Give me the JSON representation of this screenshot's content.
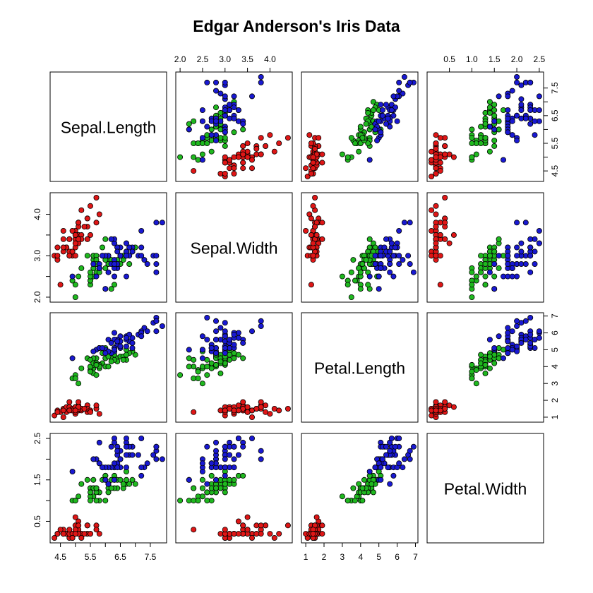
{
  "chart_data": {
    "type": "scatter",
    "title": "Edgar Anderson's Iris Data",
    "variables": [
      "Sepal.Length",
      "Sepal.Width",
      "Petal.Length",
      "Petal.Width"
    ],
    "ranges": {
      "Sepal.Length": [
        4.3,
        7.9
      ],
      "Sepal.Width": [
        2.0,
        4.4
      ],
      "Petal.Length": [
        1.0,
        6.9
      ],
      "Petal.Width": [
        0.1,
        2.5
      ]
    },
    "ticks": {
      "Sepal.Length": {
        "major": [
          4.5,
          5.5,
          6.5,
          7.5
        ],
        "minor": [
          5.0,
          6.0,
          7.0
        ],
        "major_labels": [
          "4.5",
          "5.5",
          "6.5",
          "7.5"
        ]
      },
      "Sepal.Width": {
        "major": [
          2.0,
          3.0,
          4.0
        ],
        "minor": [
          2.5,
          3.5
        ],
        "major_labels": [
          "2.0",
          "3.0",
          "4.0"
        ],
        "top_labels": [
          "2.0",
          "2.5",
          "3.0",
          "3.5",
          "4.0"
        ]
      },
      "Petal.Length": {
        "major": [
          1,
          2,
          3,
          4,
          5,
          6,
          7
        ],
        "minor": [],
        "major_labels": [
          "1",
          "2",
          "3",
          "4",
          "5",
          "6",
          "7"
        ]
      },
      "Petal.Width": {
        "major": [
          0.5,
          1.5,
          2.5
        ],
        "minor": [
          1.0,
          2.0
        ],
        "major_labels": [
          "0.5",
          "1.5",
          "2.5"
        ],
        "top_labels": [
          "0.5",
          "1.0",
          "1.5",
          "2.0",
          "2.5"
        ]
      }
    },
    "colors": {
      "setosa": "#df1616",
      "versicolor": "#1fb81f",
      "virginica": "#1919d2"
    },
    "point_stroke": "#000000",
    "data": {
      "setosa": [
        [
          5.1,
          3.5,
          1.4,
          0.2
        ],
        [
          4.9,
          3.0,
          1.4,
          0.2
        ],
        [
          4.7,
          3.2,
          1.3,
          0.2
        ],
        [
          4.6,
          3.1,
          1.5,
          0.2
        ],
        [
          5.0,
          3.6,
          1.4,
          0.2
        ],
        [
          5.4,
          3.9,
          1.7,
          0.4
        ],
        [
          4.6,
          3.4,
          1.4,
          0.3
        ],
        [
          5.0,
          3.4,
          1.5,
          0.2
        ],
        [
          4.4,
          2.9,
          1.4,
          0.2
        ],
        [
          4.9,
          3.1,
          1.5,
          0.1
        ],
        [
          5.4,
          3.7,
          1.5,
          0.2
        ],
        [
          4.8,
          3.4,
          1.6,
          0.2
        ],
        [
          4.8,
          3.0,
          1.4,
          0.1
        ],
        [
          4.3,
          3.0,
          1.1,
          0.1
        ],
        [
          5.8,
          4.0,
          1.2,
          0.2
        ],
        [
          5.7,
          4.4,
          1.5,
          0.4
        ],
        [
          5.4,
          3.9,
          1.3,
          0.4
        ],
        [
          5.1,
          3.5,
          1.4,
          0.3
        ],
        [
          5.7,
          3.8,
          1.7,
          0.3
        ],
        [
          5.1,
          3.8,
          1.5,
          0.3
        ],
        [
          5.4,
          3.4,
          1.7,
          0.2
        ],
        [
          5.1,
          3.7,
          1.5,
          0.4
        ],
        [
          4.6,
          3.6,
          1.0,
          0.2
        ],
        [
          5.1,
          3.3,
          1.7,
          0.5
        ],
        [
          4.8,
          3.4,
          1.9,
          0.2
        ],
        [
          5.0,
          3.0,
          1.6,
          0.2
        ],
        [
          5.0,
          3.4,
          1.6,
          0.4
        ],
        [
          5.2,
          3.5,
          1.5,
          0.2
        ],
        [
          5.2,
          3.4,
          1.4,
          0.2
        ],
        [
          4.7,
          3.2,
          1.6,
          0.2
        ],
        [
          4.8,
          3.1,
          1.6,
          0.2
        ],
        [
          5.4,
          3.4,
          1.5,
          0.4
        ],
        [
          5.2,
          4.1,
          1.5,
          0.1
        ],
        [
          5.5,
          4.2,
          1.4,
          0.2
        ],
        [
          4.9,
          3.1,
          1.5,
          0.2
        ],
        [
          5.0,
          3.2,
          1.2,
          0.2
        ],
        [
          5.5,
          3.5,
          1.3,
          0.2
        ],
        [
          4.9,
          3.6,
          1.4,
          0.1
        ],
        [
          4.4,
          3.0,
          1.3,
          0.2
        ],
        [
          5.1,
          3.4,
          1.5,
          0.2
        ],
        [
          5.0,
          3.5,
          1.3,
          0.3
        ],
        [
          4.5,
          2.3,
          1.3,
          0.3
        ],
        [
          4.4,
          3.2,
          1.3,
          0.2
        ],
        [
          5.0,
          3.5,
          1.6,
          0.6
        ],
        [
          5.1,
          3.8,
          1.9,
          0.4
        ],
        [
          4.8,
          3.0,
          1.4,
          0.3
        ],
        [
          5.1,
          3.8,
          1.6,
          0.2
        ],
        [
          4.6,
          3.2,
          1.4,
          0.2
        ],
        [
          5.3,
          3.7,
          1.5,
          0.2
        ],
        [
          5.0,
          3.3,
          1.4,
          0.2
        ]
      ],
      "versicolor": [
        [
          7.0,
          3.2,
          4.7,
          1.4
        ],
        [
          6.4,
          3.2,
          4.5,
          1.5
        ],
        [
          6.9,
          3.1,
          4.9,
          1.5
        ],
        [
          5.5,
          2.3,
          4.0,
          1.3
        ],
        [
          6.5,
          2.8,
          4.6,
          1.5
        ],
        [
          5.7,
          2.8,
          4.5,
          1.3
        ],
        [
          6.3,
          3.3,
          4.7,
          1.6
        ],
        [
          4.9,
          2.4,
          3.3,
          1.0
        ],
        [
          6.6,
          2.9,
          4.6,
          1.3
        ],
        [
          5.2,
          2.7,
          3.9,
          1.4
        ],
        [
          5.0,
          2.0,
          3.5,
          1.0
        ],
        [
          5.9,
          3.0,
          4.2,
          1.5
        ],
        [
          6.0,
          2.2,
          4.0,
          1.0
        ],
        [
          6.1,
          2.9,
          4.7,
          1.4
        ],
        [
          5.6,
          2.9,
          3.6,
          1.3
        ],
        [
          6.7,
          3.1,
          4.4,
          1.4
        ],
        [
          5.6,
          3.0,
          4.5,
          1.5
        ],
        [
          5.8,
          2.7,
          4.1,
          1.0
        ],
        [
          6.2,
          2.2,
          4.5,
          1.5
        ],
        [
          5.6,
          2.5,
          3.9,
          1.1
        ],
        [
          5.9,
          3.2,
          4.8,
          1.8
        ],
        [
          6.1,
          2.8,
          4.0,
          1.3
        ],
        [
          6.3,
          2.5,
          4.9,
          1.5
        ],
        [
          6.1,
          2.8,
          4.7,
          1.2
        ],
        [
          6.4,
          2.9,
          4.3,
          1.3
        ],
        [
          6.6,
          3.0,
          4.4,
          1.4
        ],
        [
          6.8,
          2.8,
          4.8,
          1.4
        ],
        [
          6.7,
          3.0,
          5.0,
          1.7
        ],
        [
          6.0,
          2.9,
          4.5,
          1.5
        ],
        [
          5.7,
          2.6,
          3.5,
          1.0
        ],
        [
          5.5,
          2.4,
          3.8,
          1.1
        ],
        [
          5.5,
          2.4,
          3.7,
          1.0
        ],
        [
          5.8,
          2.7,
          3.9,
          1.2
        ],
        [
          6.0,
          2.7,
          5.1,
          1.6
        ],
        [
          5.4,
          3.0,
          4.5,
          1.5
        ],
        [
          6.0,
          3.4,
          4.5,
          1.6
        ],
        [
          6.7,
          3.1,
          4.7,
          1.5
        ],
        [
          6.3,
          2.3,
          4.4,
          1.3
        ],
        [
          5.6,
          3.0,
          4.1,
          1.3
        ],
        [
          5.5,
          2.5,
          4.0,
          1.3
        ],
        [
          5.5,
          2.6,
          4.4,
          1.2
        ],
        [
          6.1,
          3.0,
          4.6,
          1.4
        ],
        [
          5.8,
          2.6,
          4.0,
          1.2
        ],
        [
          5.0,
          2.3,
          3.3,
          1.0
        ],
        [
          5.6,
          2.7,
          4.2,
          1.3
        ],
        [
          5.7,
          3.0,
          4.2,
          1.2
        ],
        [
          5.7,
          2.9,
          4.2,
          1.3
        ],
        [
          6.2,
          2.9,
          4.3,
          1.3
        ],
        [
          5.1,
          2.5,
          3.0,
          1.1
        ],
        [
          5.7,
          2.8,
          4.1,
          1.3
        ]
      ],
      "virginica": [
        [
          6.3,
          3.3,
          6.0,
          2.5
        ],
        [
          5.8,
          2.7,
          5.1,
          1.9
        ],
        [
          7.1,
          3.0,
          5.9,
          2.1
        ],
        [
          6.3,
          2.9,
          5.6,
          1.8
        ],
        [
          6.5,
          3.0,
          5.8,
          2.2
        ],
        [
          7.6,
          3.0,
          6.6,
          2.1
        ],
        [
          4.9,
          2.5,
          4.5,
          1.7
        ],
        [
          7.3,
          2.9,
          6.3,
          1.8
        ],
        [
          6.7,
          2.5,
          5.8,
          1.8
        ],
        [
          7.2,
          3.6,
          6.1,
          2.5
        ],
        [
          6.5,
          3.2,
          5.1,
          2.0
        ],
        [
          6.4,
          2.7,
          5.3,
          1.9
        ],
        [
          6.8,
          3.0,
          5.5,
          2.1
        ],
        [
          5.7,
          2.5,
          5.0,
          2.0
        ],
        [
          5.8,
          2.8,
          5.1,
          2.4
        ],
        [
          6.4,
          3.2,
          5.3,
          2.3
        ],
        [
          6.5,
          3.0,
          5.5,
          1.8
        ],
        [
          7.7,
          3.8,
          6.7,
          2.2
        ],
        [
          7.7,
          2.6,
          6.9,
          2.3
        ],
        [
          6.0,
          2.2,
          5.0,
          1.5
        ],
        [
          6.9,
          3.2,
          5.7,
          2.3
        ],
        [
          5.6,
          2.8,
          4.9,
          2.0
        ],
        [
          7.7,
          2.8,
          6.7,
          2.0
        ],
        [
          6.3,
          2.7,
          4.9,
          1.8
        ],
        [
          6.7,
          3.3,
          5.7,
          2.1
        ],
        [
          7.2,
          3.2,
          6.0,
          1.8
        ],
        [
          6.2,
          2.8,
          4.8,
          1.8
        ],
        [
          6.1,
          3.0,
          4.9,
          1.8
        ],
        [
          6.4,
          2.8,
          5.6,
          2.1
        ],
        [
          7.2,
          3.0,
          5.8,
          1.6
        ],
        [
          7.4,
          2.8,
          6.1,
          1.9
        ],
        [
          7.9,
          3.8,
          6.4,
          2.0
        ],
        [
          6.4,
          2.8,
          5.6,
          2.2
        ],
        [
          6.3,
          2.8,
          5.1,
          1.5
        ],
        [
          6.1,
          2.6,
          5.6,
          1.4
        ],
        [
          7.7,
          3.0,
          6.1,
          2.3
        ],
        [
          6.3,
          3.4,
          5.6,
          2.4
        ],
        [
          6.4,
          3.1,
          5.5,
          1.8
        ],
        [
          6.0,
          3.0,
          4.8,
          1.8
        ],
        [
          6.9,
          3.1,
          5.4,
          2.1
        ],
        [
          6.7,
          3.1,
          5.6,
          2.4
        ],
        [
          6.9,
          3.1,
          5.1,
          2.3
        ],
        [
          5.8,
          2.7,
          5.1,
          1.9
        ],
        [
          6.8,
          3.2,
          5.9,
          2.3
        ],
        [
          6.7,
          3.3,
          5.7,
          2.5
        ],
        [
          6.7,
          3.0,
          5.2,
          2.3
        ],
        [
          6.3,
          2.5,
          5.0,
          1.9
        ],
        [
          6.5,
          3.0,
          5.2,
          2.0
        ],
        [
          6.2,
          3.4,
          5.4,
          2.3
        ],
        [
          5.9,
          3.0,
          5.1,
          1.8
        ]
      ]
    }
  }
}
